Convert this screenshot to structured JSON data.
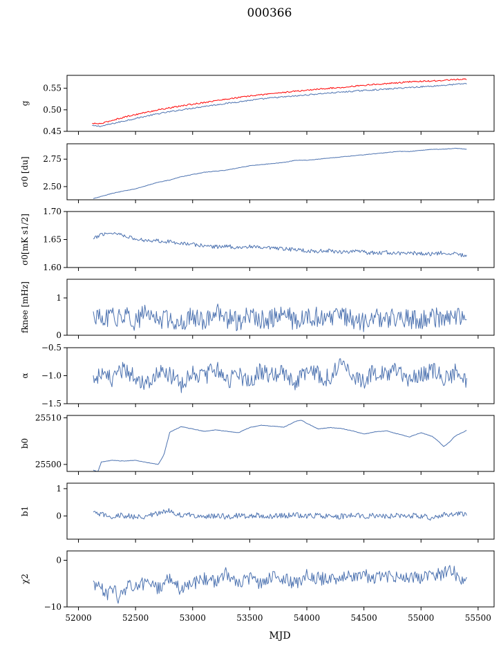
{
  "figure": {
    "title": "000366",
    "xlabel": "MJD",
    "x_ticks": [
      "52000",
      "52500",
      "53000",
      "53500",
      "54000",
      "54500",
      "55000",
      "55500"
    ]
  },
  "colors": {
    "series": "#4c72b0",
    "fit": "#ff0000"
  },
  "chart_data": [
    {
      "type": "line",
      "ylabel": "g",
      "ylim": [
        0.45,
        0.58
      ],
      "y_ticks": [
        "0.45",
        "0.50",
        "0.55"
      ],
      "series": [
        {
          "color": "#4c72b0",
          "x": [
            52120,
            52200,
            52300,
            52400,
            52500,
            52700,
            52900,
            53100,
            53300,
            53500,
            53700,
            53900,
            54100,
            54300,
            54500,
            54700,
            54900,
            55100,
            55300,
            55400
          ],
          "y": [
            0.463,
            0.462,
            0.468,
            0.474,
            0.48,
            0.491,
            0.5,
            0.508,
            0.515,
            0.522,
            0.528,
            0.532,
            0.537,
            0.541,
            0.545,
            0.548,
            0.552,
            0.555,
            0.559,
            0.561
          ]
        },
        {
          "color": "#ff0000",
          "x": [
            52120,
            52200,
            52300,
            52400,
            52500,
            52700,
            52900,
            53100,
            53300,
            53500,
            53700,
            53900,
            54100,
            54300,
            54500,
            54700,
            54900,
            55100,
            55300,
            55400
          ],
          "y": [
            0.468,
            0.468,
            0.476,
            0.483,
            0.489,
            0.5,
            0.509,
            0.517,
            0.525,
            0.532,
            0.538,
            0.543,
            0.548,
            0.552,
            0.557,
            0.561,
            0.565,
            0.567,
            0.57,
            0.571
          ]
        }
      ]
    },
    {
      "type": "line",
      "ylabel": "σ0 [du]",
      "ylim": [
        2.38,
        2.89
      ],
      "y_ticks": [
        "2.50",
        "2.75"
      ],
      "series": [
        {
          "color": "#4c72b0",
          "x": [
            52130,
            52200,
            52300,
            52400,
            52500,
            52600,
            52700,
            52800,
            52900,
            53000,
            53100,
            53200,
            53300,
            53400,
            53500,
            53600,
            53700,
            53800,
            53900,
            54000,
            54100,
            54200,
            54300,
            54400,
            54500,
            54600,
            54700,
            54800,
            54900,
            55000,
            55100,
            55200,
            55300,
            55400
          ],
          "y": [
            2.39,
            2.41,
            2.44,
            2.46,
            2.48,
            2.51,
            2.54,
            2.56,
            2.59,
            2.61,
            2.63,
            2.64,
            2.65,
            2.67,
            2.69,
            2.7,
            2.71,
            2.72,
            2.74,
            2.74,
            2.75,
            2.76,
            2.77,
            2.78,
            2.79,
            2.8,
            2.81,
            2.82,
            2.82,
            2.83,
            2.84,
            2.84,
            2.85,
            2.84
          ]
        }
      ]
    },
    {
      "type": "line",
      "ylabel": "σ0[mK s1/2]",
      "ylim": [
        1.6,
        1.7
      ],
      "y_ticks": [
        "1.60",
        "1.65",
        "1.70"
      ],
      "series": [
        {
          "color": "#4c72b0",
          "x": [
            52130,
            52200,
            52300,
            52400,
            52500,
            52600,
            52700,
            52800,
            52900,
            53000,
            53100,
            53200,
            53300,
            53400,
            53500,
            53600,
            53700,
            53800,
            53900,
            54000,
            54100,
            54200,
            54300,
            54400,
            54500,
            54600,
            54700,
            54800,
            54900,
            55000,
            55100,
            55200,
            55300,
            55400
          ],
          "y": [
            1.65,
            1.66,
            1.662,
            1.658,
            1.65,
            1.649,
            1.648,
            1.646,
            1.644,
            1.641,
            1.639,
            1.637,
            1.638,
            1.636,
            1.637,
            1.635,
            1.634,
            1.633,
            1.632,
            1.63,
            1.629,
            1.63,
            1.628,
            1.629,
            1.627,
            1.626,
            1.627,
            1.625,
            1.626,
            1.625,
            1.624,
            1.627,
            1.625,
            1.62
          ]
        }
      ]
    },
    {
      "type": "line",
      "ylabel": "fknee [mHz]",
      "ylim": [
        0,
        1.5
      ],
      "y_ticks": [
        "0",
        "1"
      ],
      "series": [
        {
          "color": "#4c72b0",
          "x": [
            52130,
            52200,
            52300,
            52400,
            52500,
            52600,
            52700,
            52800,
            52900,
            53000,
            53100,
            53200,
            53300,
            53400,
            53500,
            53600,
            53700,
            53800,
            53900,
            54000,
            54100,
            54200,
            54300,
            54400,
            54500,
            54600,
            54700,
            54800,
            54900,
            55000,
            55100,
            55200,
            55300,
            55400
          ],
          "y": [
            0.55,
            0.4,
            0.48,
            0.52,
            0.38,
            0.6,
            0.42,
            0.45,
            0.35,
            0.5,
            0.4,
            0.62,
            0.44,
            0.38,
            0.52,
            0.4,
            0.46,
            0.58,
            0.36,
            0.44,
            0.5,
            0.38,
            0.55,
            0.42,
            0.36,
            0.48,
            0.4,
            0.52,
            0.44,
            0.38,
            0.5,
            0.42,
            0.47,
            0.55
          ]
        }
      ]
    },
    {
      "type": "line",
      "ylabel": "α",
      "ylim": [
        -1.5,
        -0.5
      ],
      "y_ticks": [
        "-1.5",
        "-1.0",
        "-0.5"
      ],
      "series": [
        {
          "color": "#4c72b0",
          "x": [
            52130,
            52200,
            52300,
            52400,
            52500,
            52600,
            52700,
            52800,
            52900,
            53000,
            53100,
            53200,
            53300,
            53400,
            53500,
            53600,
            53700,
            53800,
            53900,
            54000,
            54100,
            54200,
            54300,
            54400,
            54500,
            54600,
            54700,
            54800,
            54900,
            55000,
            55100,
            55200,
            55300,
            55400
          ],
          "y": [
            -1.05,
            -0.95,
            -1.1,
            -0.88,
            -1.02,
            -1.12,
            -0.92,
            -1.0,
            -1.15,
            -0.9,
            -1.05,
            -0.85,
            -1.08,
            -0.98,
            -1.12,
            -0.9,
            -1.02,
            -0.95,
            -1.1,
            -0.88,
            -0.98,
            -1.05,
            -0.8,
            -1.0,
            -1.1,
            -0.92,
            -1.02,
            -0.86,
            -1.08,
            -0.96,
            -0.9,
            -1.04,
            -0.94,
            -1.1
          ]
        }
      ]
    },
    {
      "type": "line",
      "ylabel": "b0",
      "ylim": [
        25498.5,
        25510.5
      ],
      "y_ticks": [
        "25500",
        "25510"
      ],
      "series": [
        {
          "color": "#4c72b0",
          "x": [
            52130,
            52170,
            52200,
            52300,
            52400,
            52500,
            52600,
            52700,
            52750,
            52800,
            52900,
            53000,
            53100,
            53200,
            53300,
            53400,
            53500,
            53600,
            53700,
            53800,
            53900,
            53950,
            54000,
            54100,
            54200,
            54300,
            54400,
            54500,
            54600,
            54700,
            54800,
            54900,
            55000,
            55100,
            55150,
            55200,
            55250,
            55300,
            55400
          ],
          "y": [
            25498.8,
            25498.4,
            25500.5,
            25500.9,
            25500.7,
            25500.9,
            25500.4,
            25500.0,
            25502.2,
            25506.9,
            25508.1,
            25507.6,
            25507.1,
            25507.4,
            25507.1,
            25506.8,
            25507.9,
            25508.4,
            25508.2,
            25508.0,
            25509.2,
            25509.5,
            25508.8,
            25507.6,
            25507.9,
            25507.7,
            25507.2,
            25506.5,
            25507.0,
            25507.2,
            25506.5,
            25505.9,
            25506.8,
            25506.0,
            25505.0,
            25503.8,
            25504.8,
            25506.1,
            25507.3
          ]
        }
      ]
    },
    {
      "type": "line",
      "ylabel": "b1",
      "ylim": [
        -0.85,
        1.2
      ],
      "y_ticks": [
        "0",
        "1"
      ],
      "series": [
        {
          "color": "#4c72b0",
          "x": [
            52130,
            52200,
            52300,
            52400,
            52500,
            52600,
            52700,
            52750,
            52800,
            52900,
            53000,
            53100,
            53200,
            53300,
            53400,
            53500,
            53600,
            53700,
            53800,
            53900,
            54000,
            54100,
            54200,
            54300,
            54400,
            54500,
            54600,
            54700,
            54800,
            54900,
            55000,
            55100,
            55200,
            55300,
            55400
          ],
          "y": [
            0.1,
            0.05,
            -0.02,
            0.02,
            -0.05,
            0.0,
            0.08,
            0.15,
            0.2,
            0.02,
            0.04,
            -0.02,
            0.01,
            -0.03,
            0.02,
            0.0,
            0.03,
            -0.02,
            0.01,
            0.04,
            -0.01,
            0.02,
            0.0,
            -0.02,
            0.03,
            0.0,
            0.02,
            -0.01,
            0.03,
            0.02,
            0.0,
            -0.08,
            0.05,
            0.1,
            0.02
          ]
        }
      ]
    },
    {
      "type": "line",
      "ylabel": "χ2",
      "ylim": [
        -10,
        2
      ],
      "y_ticks": [
        "-10",
        "0"
      ],
      "series": [
        {
          "color": "#4c72b0",
          "x": [
            52130,
            52200,
            52250,
            52300,
            52350,
            52400,
            52450,
            52500,
            52600,
            52700,
            52800,
            52900,
            53000,
            53100,
            53200,
            53300,
            53400,
            53500,
            53600,
            53700,
            53800,
            53900,
            54000,
            54100,
            54200,
            54300,
            54400,
            54500,
            54600,
            54700,
            54800,
            54900,
            55000,
            55100,
            55200,
            55250,
            55300,
            55400
          ],
          "y": [
            -5.0,
            -6.2,
            -7.5,
            -5.8,
            -8.0,
            -6.5,
            -5.0,
            -5.6,
            -4.8,
            -6.2,
            -3.5,
            -6.5,
            -5.0,
            -3.8,
            -4.5,
            -2.8,
            -4.6,
            -3.9,
            -5.4,
            -3.2,
            -4.1,
            -5.0,
            -3.0,
            -3.9,
            -4.2,
            -3.5,
            -3.8,
            -3.1,
            -4.0,
            -3.4,
            -3.2,
            -3.9,
            -3.6,
            -3.3,
            -2.9,
            -1.2,
            -3.0,
            -4.8
          ]
        }
      ]
    }
  ]
}
